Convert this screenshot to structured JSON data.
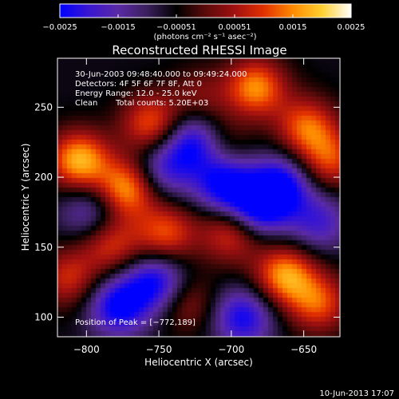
{
  "colorbar": {
    "tick_labels": [
      "−0.0025",
      "−0.0015",
      "−0.00051",
      "0.00051",
      "0.0015",
      "0.0025"
    ],
    "units_label": "(photons cm⁻² s⁻¹ asec⁻²)",
    "colormap": [
      "#0000ff",
      "#3a16d0",
      "#5a2aa6",
      "#3a1f5c",
      "#000000",
      "#5a0a0a",
      "#a01010",
      "#e23000",
      "#ff8a00",
      "#ffd030",
      "#ffffff"
    ]
  },
  "chart_data": {
    "type": "heatmap",
    "title": "Reconstructed RHESSI Image",
    "xlabel": "Heliocentric X (arcsec)",
    "ylabel": "Heliocentric Y (arcsec)",
    "xlim": [
      -820,
      -625
    ],
    "ylim": [
      86,
      285
    ],
    "xticks": [
      -800,
      -750,
      -700,
      -650
    ],
    "yticks": [
      100,
      150,
      200,
      250
    ],
    "zrange": [
      -0.0025,
      0.0025
    ],
    "peak_position": [
      -772,
      189
    ],
    "hot_spots": [
      {
        "x": -805,
        "y": 212,
        "v": 0.0024
      },
      {
        "x": -772,
        "y": 192,
        "v": 0.0023
      },
      {
        "x": -755,
        "y": 238,
        "v": 0.0018
      },
      {
        "x": -683,
        "y": 264,
        "v": 0.0021
      },
      {
        "x": -745,
        "y": 160,
        "v": 0.0017
      },
      {
        "x": -783,
        "y": 152,
        "v": 0.0015
      },
      {
        "x": -700,
        "y": 160,
        "v": 0.0016
      },
      {
        "x": -663,
        "y": 130,
        "v": 0.0022
      },
      {
        "x": -648,
        "y": 236,
        "v": 0.0018
      },
      {
        "x": -632,
        "y": 212,
        "v": 0.0016
      },
      {
        "x": -640,
        "y": 110,
        "v": 0.0017
      },
      {
        "x": -812,
        "y": 128,
        "v": 0.0014
      },
      {
        "x": -730,
        "y": 110,
        "v": 0.001
      },
      {
        "x": -722,
        "y": 258,
        "v": 0.0008
      },
      {
        "x": -710,
        "y": 225,
        "v": 0.001
      }
    ],
    "cold_spots": [
      {
        "x": -725,
        "y": 225,
        "v": -0.0022
      },
      {
        "x": -705,
        "y": 195,
        "v": -0.002
      },
      {
        "x": -682,
        "y": 178,
        "v": -0.0021
      },
      {
        "x": -752,
        "y": 125,
        "v": -0.0019
      },
      {
        "x": -778,
        "y": 108,
        "v": -0.002
      },
      {
        "x": -692,
        "y": 100,
        "v": -0.0018
      },
      {
        "x": -665,
        "y": 195,
        "v": -0.0019
      },
      {
        "x": -748,
        "y": 205,
        "v": -0.0014
      },
      {
        "x": -797,
        "y": 175,
        "v": -0.0012
      },
      {
        "x": -640,
        "y": 168,
        "v": -0.0013
      }
    ]
  },
  "info": {
    "time_range": "30-Jun-2003 09:48:40.000 to 09:49:24.000",
    "detectors": "Detectors: 4F 5F 6F 7F 8F, Att 0",
    "energy": "Energy Range: 12.0 - 25.0 keV",
    "method": "Clean",
    "counts": "Total counts: 5.20E+03",
    "peak": "Position of Peak = [−772,189]"
  },
  "footer": {
    "timestamp": "10-Jun-2013 17:07"
  }
}
